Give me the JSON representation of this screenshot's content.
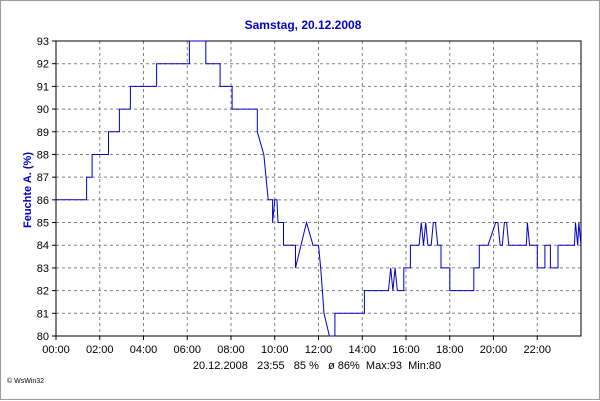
{
  "chart_data": {
    "type": "line",
    "title": "Samstag, 20.12.2008",
    "xlabel": "",
    "ylabel": "Feuchte A. (%)",
    "xlim": [
      0,
      24
    ],
    "ylim": [
      80,
      93
    ],
    "x_ticks": [
      {
        "v": 0,
        "label": "00:00"
      },
      {
        "v": 2,
        "label": "02:00"
      },
      {
        "v": 4,
        "label": "04:00"
      },
      {
        "v": 6,
        "label": "06:00"
      },
      {
        "v": 8,
        "label": "08:00"
      },
      {
        "v": 10,
        "label": "10:00"
      },
      {
        "v": 12,
        "label": "12:00"
      },
      {
        "v": 14,
        "label": "14:00"
      },
      {
        "v": 16,
        "label": "16:00"
      },
      {
        "v": 18,
        "label": "18:00"
      },
      {
        "v": 20,
        "label": "20:00"
      },
      {
        "v": 22,
        "label": "22:00"
      }
    ],
    "y_ticks": [
      80,
      81,
      82,
      83,
      84,
      85,
      86,
      87,
      88,
      89,
      90,
      91,
      92,
      93
    ],
    "grid": true,
    "line_color": "#0000c8",
    "series": [
      {
        "name": "",
        "x": [
          0,
          1.4,
          1.4,
          1.65,
          1.65,
          1.9,
          1.9,
          2.4,
          2.4,
          2.9,
          2.9,
          3.4,
          3.4,
          3.9,
          3.9,
          4.6,
          4.6,
          6.1,
          6.1,
          6.65,
          6.65,
          6.85,
          6.85,
          7.5,
          7.5,
          8.05,
          8.05,
          9.2,
          9.2,
          9.5,
          9.7,
          9.9,
          9.9,
          10.0,
          10.1,
          10.15,
          10.25,
          10.4,
          10.4,
          10.6,
          10.6,
          10.95,
          10.95,
          11.45,
          11.45,
          11.75,
          11.75,
          12.0,
          12.1,
          12.25,
          12.25,
          12.5,
          12.5,
          12.75,
          12.75,
          14.1,
          14.1,
          15.2,
          15.3,
          15.4,
          15.5,
          15.6,
          15.6,
          15.9,
          15.9,
          16.2,
          16.2,
          16.6,
          16.7,
          16.8,
          16.9,
          17.0,
          17.15,
          17.25,
          17.35,
          17.45,
          17.6,
          17.6,
          18.0,
          18.0,
          19.1,
          19.1,
          19.35,
          19.35,
          19.75,
          19.75,
          20.1,
          20.2,
          20.3,
          20.4,
          20.5,
          20.6,
          20.7,
          20.8,
          20.9,
          21.5,
          21.55,
          21.65,
          21.7,
          22.0,
          22.0,
          22.35,
          22.35,
          22.6,
          22.6,
          22.95,
          22.95,
          23.7,
          23.75,
          23.85,
          23.9,
          24
        ],
        "y": [
          86,
          86,
          87,
          87,
          88,
          88,
          88,
          88,
          89,
          89,
          90,
          90,
          91,
          91,
          91,
          91,
          92,
          92,
          93,
          93,
          93,
          93,
          92,
          92,
          91,
          91,
          90,
          90,
          89,
          88,
          86,
          86,
          85,
          86,
          86,
          85,
          85,
          85,
          84,
          84,
          84,
          84,
          83,
          85,
          85,
          84,
          84,
          84,
          83,
          81,
          81,
          80,
          80,
          80,
          81,
          81,
          82,
          82,
          83,
          82,
          83,
          82,
          82,
          82,
          83,
          83,
          84,
          84,
          85,
          84,
          85,
          84,
          84,
          85,
          85,
          84,
          84,
          83,
          83,
          82,
          82,
          83,
          83,
          84,
          84,
          84,
          85,
          85,
          84,
          84,
          85,
          85,
          84,
          84,
          84,
          84,
          85,
          84,
          84,
          84,
          83,
          83,
          84,
          84,
          83,
          83,
          84,
          84,
          85,
          84,
          85,
          84
        ]
      }
    ],
    "stats_text": "20.12.2008   23:55   85 %   ø 86%  Max:93  Min:80"
  },
  "footer": {
    "copyright": "© WsWin32"
  }
}
